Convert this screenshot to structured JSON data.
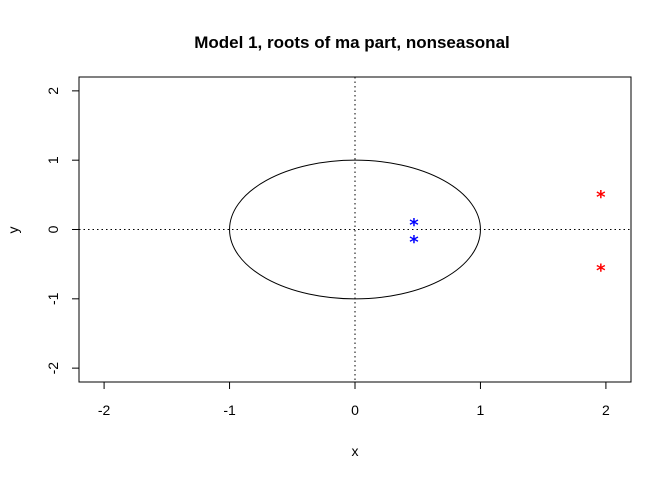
{
  "chart_data": {
    "type": "scatter",
    "title": "Model 1, roots of ma part, nonseasonal",
    "xlabel": "x",
    "ylabel": "y",
    "xlim": [
      -2.2,
      2.2
    ],
    "ylim": [
      -2.2,
      2.2
    ],
    "x_ticks": [
      -2,
      -1,
      0,
      1,
      2
    ],
    "y_ticks": [
      -2,
      -1,
      0,
      1,
      2
    ],
    "grid": false,
    "reference_lines": {
      "x": 0,
      "y": 0,
      "style": "dotted"
    },
    "unit_circle": {
      "center": [
        0,
        0
      ],
      "radius": 1
    },
    "marker": "*",
    "series": [
      {
        "color": "#0000ff",
        "points": [
          [
            0.47,
            0.11
          ],
          [
            0.47,
            -0.14
          ]
        ]
      },
      {
        "color": "#ff0000",
        "points": [
          [
            1.96,
            0.51
          ],
          [
            1.96,
            -0.55
          ]
        ]
      }
    ]
  }
}
